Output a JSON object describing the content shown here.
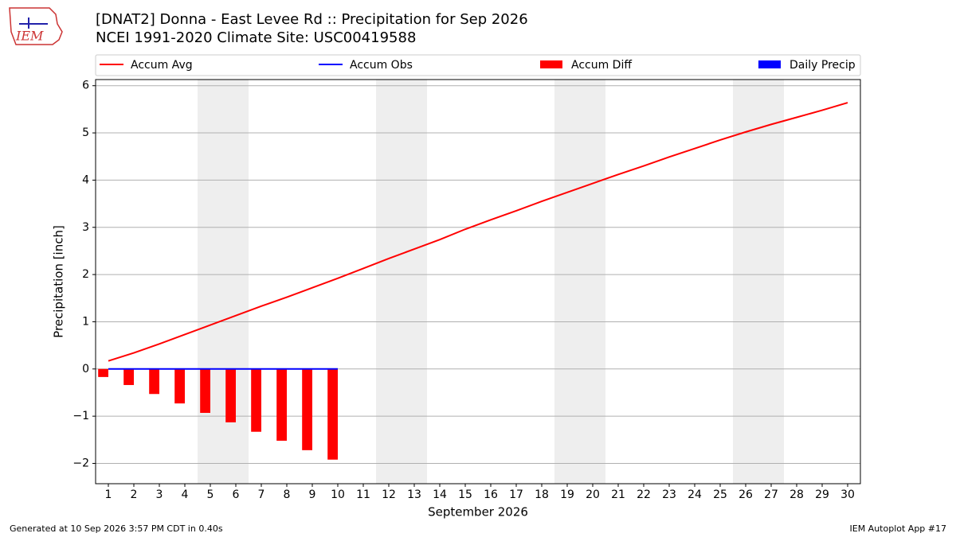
{
  "chart_data": {
    "type": "combo",
    "logo_text": "IEM",
    "title": "[DNAT2] Donna - East Levee Rd :: Precipitation for Sep 2026",
    "subtitle": "NCEI 1991-2020 Climate Site: USC00419588",
    "xlabel": "September 2026",
    "ylabel": "Precipitation [inch]",
    "x": [
      1,
      2,
      3,
      4,
      5,
      6,
      7,
      8,
      9,
      10,
      11,
      12,
      13,
      14,
      15,
      16,
      17,
      18,
      19,
      20,
      21,
      22,
      23,
      24,
      25,
      26,
      27,
      28,
      29,
      30
    ],
    "xlim": [
      0.5,
      30.5
    ],
    "xticks": [
      1,
      2,
      3,
      4,
      5,
      6,
      7,
      8,
      9,
      10,
      11,
      12,
      13,
      14,
      15,
      16,
      17,
      18,
      19,
      20,
      21,
      22,
      23,
      24,
      25,
      26,
      27,
      28,
      29,
      30
    ],
    "ylim": [
      -2.43,
      6.13
    ],
    "yticks": [
      {
        "value": -2,
        "label": "−2"
      },
      {
        "value": -1,
        "label": "−1"
      },
      0,
      1,
      2,
      3,
      4,
      5,
      6
    ],
    "grid": true,
    "series": [
      {
        "name": "Accum Avg",
        "type": "line",
        "color": "#ff0000",
        "values": [
          0.17,
          0.34,
          0.53,
          0.73,
          0.93,
          1.13,
          1.33,
          1.52,
          1.72,
          1.92,
          2.13,
          2.34,
          2.54,
          2.74,
          2.96,
          3.16,
          3.35,
          3.55,
          3.74,
          3.93,
          4.12,
          4.3,
          4.49,
          4.67,
          4.85,
          5.02,
          5.18,
          5.33,
          5.48,
          5.64
        ]
      },
      {
        "name": "Accum Obs",
        "type": "line",
        "color": "#0000ff",
        "values": [
          0,
          0,
          0,
          0,
          0,
          0,
          0,
          0,
          0,
          0,
          null,
          null,
          null,
          null,
          null,
          null,
          null,
          null,
          null,
          null,
          null,
          null,
          null,
          null,
          null,
          null,
          null,
          null,
          null,
          null
        ]
      },
      {
        "name": "Accum Diff",
        "type": "bar",
        "color": "#ff0000",
        "values": [
          -0.17,
          -0.34,
          -0.53,
          -0.73,
          -0.93,
          -1.13,
          -1.33,
          -1.52,
          -1.72,
          -1.92,
          null,
          null,
          null,
          null,
          null,
          null,
          null,
          null,
          null,
          null,
          null,
          null,
          null,
          null,
          null,
          null,
          null,
          null,
          null,
          null
        ]
      },
      {
        "name": "Daily Precip",
        "type": "bar",
        "color": "#0000ff",
        "values": [
          0,
          0,
          0,
          0,
          0,
          0,
          0,
          0,
          0,
          0,
          null,
          null,
          null,
          null,
          null,
          null,
          null,
          null,
          null,
          null,
          null,
          null,
          null,
          null,
          null,
          null,
          null,
          null,
          null,
          null
        ]
      }
    ],
    "footer_left": "Generated at 10 Sep 2026 3:57 PM CDT in 0.40s",
    "footer_right": "IEM Autoplot App #17"
  }
}
